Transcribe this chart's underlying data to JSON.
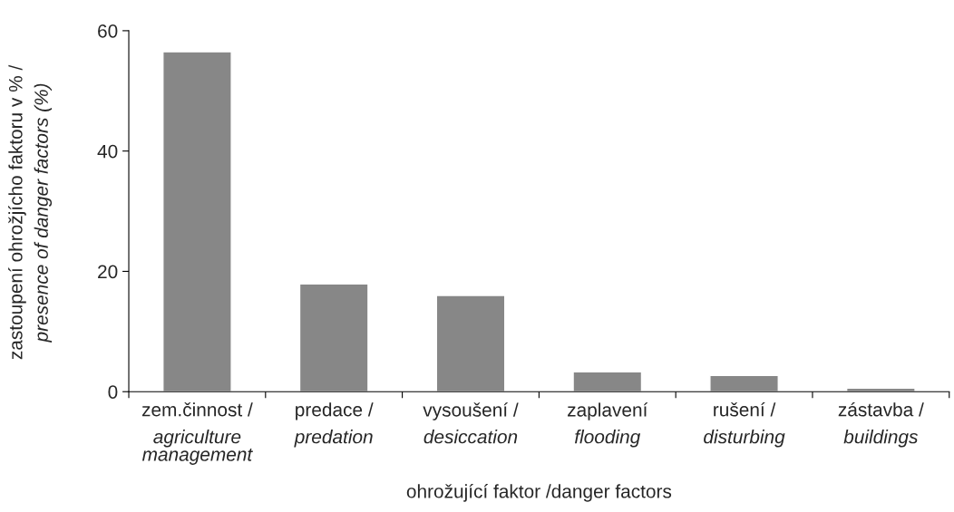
{
  "chart_data": {
    "type": "bar",
    "categories": [
      "zem.činnost /\nagriculture\nmanagement",
      "predace /\npredation",
      "vysoušení /\ndesiccation",
      "zaplavení\nflooding",
      "rušení /\ndisturbing",
      "zástavba /\nbuildings"
    ],
    "values": [
      56.5,
      17.9,
      16.0,
      3.3,
      2.7,
      0.6
    ],
    "color": "#878787",
    "xlabel": "ohrožující faktor /danger factors",
    "ylabel": "zastoupení ohrožjícho faktoru v % /\npresence of danger factors (%)",
    "ylim": [
      0,
      60
    ],
    "yticks": [
      0,
      20,
      40,
      60
    ],
    "grid": false
  }
}
